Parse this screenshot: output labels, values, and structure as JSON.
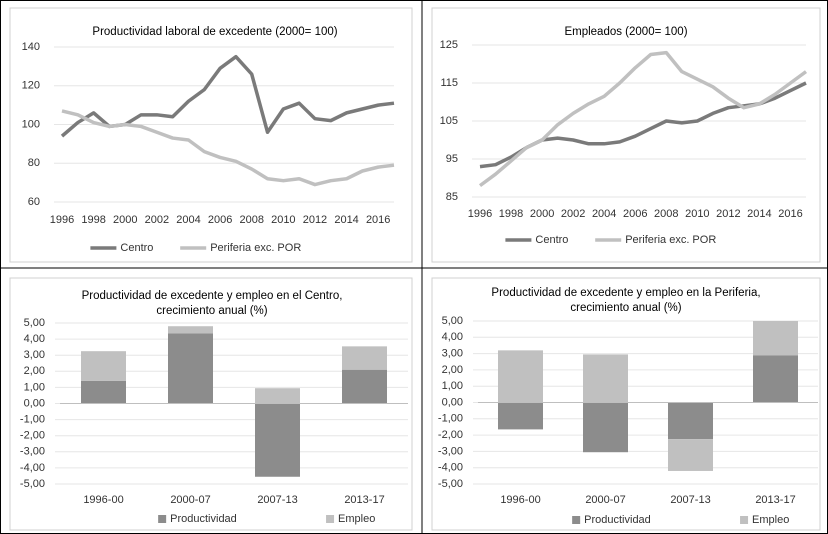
{
  "chart_data": [
    {
      "type": "line",
      "title": "Productividad laboral de excedente (2000= 100)",
      "x": [
        1996,
        1997,
        1998,
        1999,
        2000,
        2001,
        2002,
        2003,
        2004,
        2005,
        2006,
        2007,
        2008,
        2009,
        2010,
        2011,
        2012,
        2013,
        2014,
        2015,
        2016,
        2017
      ],
      "series": [
        {
          "name": "Centro",
          "color": "#7a7a7a",
          "values": [
            94,
            101,
            106,
            99,
            100,
            105,
            105,
            104,
            112,
            118,
            129,
            135,
            126,
            96,
            108,
            111,
            103,
            102,
            106,
            108,
            110,
            111
          ]
        },
        {
          "name": "Periferia exc. POR",
          "color": "#c0c0c0",
          "values": [
            107,
            105,
            101,
            99,
            100,
            99,
            96,
            93,
            92,
            86,
            83,
            81,
            77,
            72,
            71,
            72,
            69,
            71,
            72,
            76,
            78,
            79
          ]
        }
      ],
      "xlim": [
        1996,
        2017
      ],
      "xticks": [
        1996,
        1998,
        2000,
        2002,
        2004,
        2006,
        2008,
        2010,
        2012,
        2014,
        2016
      ],
      "ylim": [
        60,
        140
      ],
      "yticks": [
        60,
        80,
        100,
        120,
        140
      ],
      "grid": true,
      "legend": "bottom"
    },
    {
      "type": "line",
      "title": "Empleados (2000= 100)",
      "x": [
        1996,
        1997,
        1998,
        1999,
        2000,
        2001,
        2002,
        2003,
        2004,
        2005,
        2006,
        2007,
        2008,
        2009,
        2010,
        2011,
        2012,
        2013,
        2014,
        2015,
        2016,
        2017
      ],
      "series": [
        {
          "name": "Centro",
          "color": "#7a7a7a",
          "values": [
            93,
            93.5,
            95.5,
            98,
            100,
            100.5,
            100,
            99,
            99,
            99.5,
            101,
            103,
            105,
            104.5,
            105,
            107,
            108.5,
            109,
            109.5,
            111,
            113,
            115
          ]
        },
        {
          "name": "Periferia exc. POR",
          "color": "#c0c0c0",
          "values": [
            88,
            91,
            94.5,
            98,
            100,
            104,
            107,
            109.5,
            111.5,
            115,
            119,
            122.5,
            123,
            118,
            116,
            114,
            111,
            108.5,
            109.5,
            112,
            115,
            118
          ]
        }
      ],
      "xlim": [
        1996,
        2017
      ],
      "xticks": [
        1996,
        1998,
        2000,
        2002,
        2004,
        2006,
        2008,
        2010,
        2012,
        2014,
        2016
      ],
      "ylim": [
        85,
        125
      ],
      "yticks": [
        85,
        95,
        105,
        115,
        125
      ],
      "grid": true,
      "legend": "bottom"
    },
    {
      "type": "bar",
      "stacked": true,
      "title": [
        "Productividad de excedente y empleo en el Centro,",
        "crecimiento anual (%)"
      ],
      "categories": [
        "1996-00",
        "2000-07",
        "2007-13",
        "2013-17"
      ],
      "series": [
        {
          "name": "Productividad",
          "color": "#8c8c8c",
          "values": [
            1.4,
            4.35,
            -4.55,
            2.1
          ]
        },
        {
          "name": "Empleo",
          "color": "#c0c0c0",
          "values": [
            1.85,
            0.45,
            0.95,
            1.45
          ]
        }
      ],
      "ylim": [
        -5,
        5
      ],
      "yticks": [
        {
          "value": -5,
          "label": "-5,00"
        },
        {
          "value": -4,
          "label": "-4,00"
        },
        {
          "value": -3,
          "label": "-3,00"
        },
        {
          "value": -2,
          "label": "-2,00"
        },
        {
          "value": -1,
          "label": "-1,00"
        },
        {
          "value": 0,
          "label": "0,00"
        },
        {
          "value": 1,
          "label": "1,00"
        },
        {
          "value": 2,
          "label": "2,00"
        },
        {
          "value": 3,
          "label": "3,00"
        },
        {
          "value": 4,
          "label": "4,00"
        },
        {
          "value": 5,
          "label": "5,00"
        }
      ],
      "grid": true,
      "legend": "bottom"
    },
    {
      "type": "bar",
      "stacked": true,
      "title": [
        "Productividad de excedente y empleo en la Periferia,",
        "crecimiento anual  (%)"
      ],
      "categories": [
        "1996-00",
        "2000-07",
        "2007-13",
        "2013-17"
      ],
      "series": [
        {
          "name": "Productividad",
          "color": "#8c8c8c",
          "values": [
            -1.65,
            -3.05,
            -2.25,
            2.9
          ]
        },
        {
          "name": "Empleo",
          "color": "#c0c0c0",
          "values": [
            3.2,
            2.95,
            -1.95,
            2.1
          ]
        }
      ],
      "ylim": [
        -5,
        5
      ],
      "yticks": [
        {
          "value": -5,
          "label": "-5,00"
        },
        {
          "value": -4,
          "label": "-4,00"
        },
        {
          "value": -3,
          "label": "-3,00"
        },
        {
          "value": -2,
          "label": "-2,00"
        },
        {
          "value": -1,
          "label": "-1,00"
        },
        {
          "value": 0,
          "label": "0,00"
        },
        {
          "value": 1,
          "label": "1,00"
        },
        {
          "value": 2,
          "label": "2,00"
        },
        {
          "value": 3,
          "label": "3,00"
        },
        {
          "value": 4,
          "label": "4,00"
        },
        {
          "value": 5,
          "label": "5,00"
        }
      ],
      "grid": true,
      "legend": "bottom"
    }
  ]
}
